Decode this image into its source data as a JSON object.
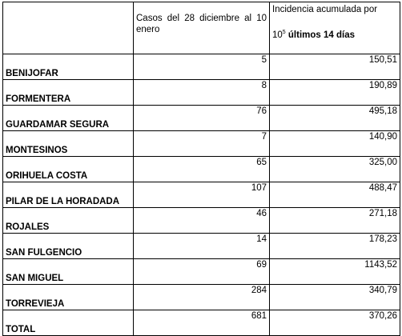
{
  "header": {
    "col1": "",
    "col2": "Casos del 28 diciembre al 10 enero",
    "col3_line1": "Incidencia acumulada por",
    "col3_base": "10",
    "col3_exp": "5",
    "col3_bold": "últimos 14 días"
  },
  "rows": [
    {
      "name": "BENIJOFAR",
      "cases": "5",
      "incidence": "150,51"
    },
    {
      "name": "FORMENTERA",
      "cases": "8",
      "incidence": "190,89"
    },
    {
      "name": "GUARDAMAR SEGURA",
      "cases": "76",
      "incidence": "495,18"
    },
    {
      "name": "MONTESINOS",
      "cases": "7",
      "incidence": "140,90"
    },
    {
      "name": "ORIHUELA COSTA",
      "cases": "65",
      "incidence": "325,00"
    },
    {
      "name": "PILAR DE LA HORADADA",
      "cases": "107",
      "incidence": "488,47"
    },
    {
      "name": "ROJALES",
      "cases": "46",
      "incidence": "271,18"
    },
    {
      "name": "SAN FULGENCIO",
      "cases": "14",
      "incidence": "178,23"
    },
    {
      "name": "SAN MIGUEL",
      "cases": "69",
      "incidence": "1143,52"
    },
    {
      "name": "TORREVIEJA",
      "cases": "284",
      "incidence": "340,79"
    },
    {
      "name": "TOTAL",
      "cases": "681",
      "incidence": "370,26"
    }
  ]
}
